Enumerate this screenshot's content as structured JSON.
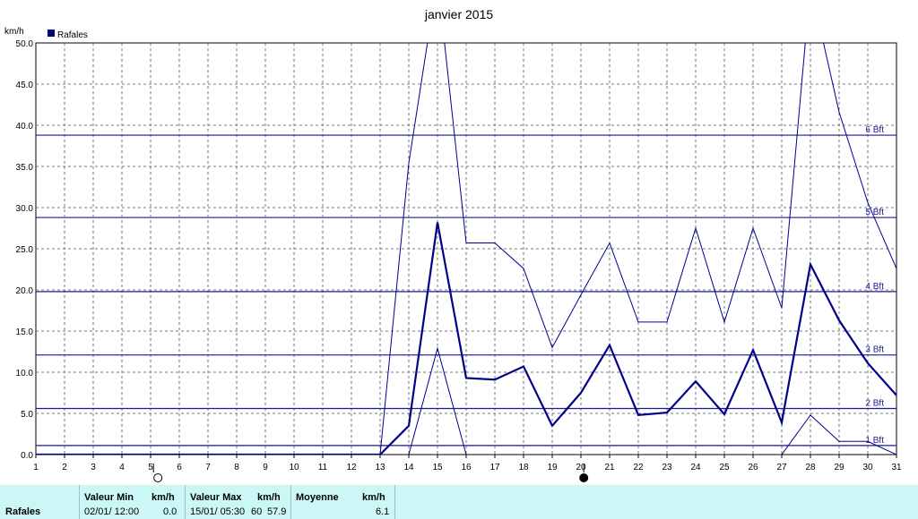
{
  "chart_data": {
    "type": "line",
    "title": "janvier 2015",
    "ylabel": "km/h",
    "legend": "Rafales",
    "legend_color": "#00007f",
    "line_color": "#00008b",
    "x": [
      1,
      2,
      3,
      4,
      5,
      6,
      7,
      8,
      9,
      10,
      11,
      12,
      13,
      14,
      15,
      16,
      17,
      18,
      19,
      20,
      21,
      22,
      23,
      24,
      25,
      26,
      27,
      28,
      29,
      30,
      31
    ],
    "xlim": [
      1,
      31
    ],
    "ylim": [
      0,
      50
    ],
    "yticks": [
      "0.0",
      "5.0",
      "10.0",
      "15.0",
      "20.0",
      "25.0",
      "30.0",
      "35.0",
      "40.0",
      "45.0",
      "50.0"
    ],
    "grid": true,
    "series": [
      {
        "role": "mean",
        "values": [
          0,
          0,
          0,
          0,
          0,
          0,
          0,
          0,
          0,
          0,
          0,
          0,
          0,
          3.5,
          28.2,
          9.3,
          9.1,
          10.7,
          3.5,
          7.5,
          13.3,
          4.8,
          5.1,
          8.9,
          4.9,
          12.7,
          3.9,
          23.1,
          16.3,
          11.1,
          7.2
        ]
      },
      {
        "role": "max",
        "values": [
          0,
          0,
          0,
          0,
          0,
          0,
          0,
          0,
          0,
          0,
          0,
          0,
          0,
          35.4,
          57.9,
          25.7,
          25.7,
          22.6,
          13.0,
          19.4,
          25.7,
          16.1,
          16.1,
          27.5,
          16.1,
          27.5,
          17.8,
          57.0,
          41.6,
          30.6,
          22.6
        ]
      },
      {
        "role": "min",
        "values": [
          null,
          null,
          null,
          null,
          null,
          null,
          null,
          null,
          null,
          null,
          null,
          null,
          null,
          0,
          12.9,
          0,
          null,
          null,
          null,
          null,
          null,
          null,
          null,
          null,
          null,
          null,
          0,
          4.8,
          1.6,
          1.6,
          0
        ]
      }
    ],
    "beaufort": [
      {
        "label": "1 Bft",
        "value": 1.1
      },
      {
        "label": "2 Bft",
        "value": 5.6
      },
      {
        "label": "3 Bft",
        "value": 12.1
      },
      {
        "label": "4 Bft",
        "value": 19.8
      },
      {
        "label": "5 Bft",
        "value": 28.8
      },
      {
        "label": "6 Bft",
        "value": 38.8
      }
    ],
    "moon_phases": [
      {
        "day": 5,
        "phase": "full-moon"
      },
      {
        "day": 20,
        "phase": "new-moon"
      }
    ]
  },
  "stats": {
    "row_label": "Rafales",
    "min_header": "Valeur Min",
    "max_header": "Valeur Max",
    "unit_header": "km/h",
    "mean_header": "Moyenne",
    "min_date": "02/01/  12:00",
    "min_value": "0.0",
    "max_date": "15/01/  05:30",
    "max_value": "57.9",
    "max_value_trunc": "60",
    "mean_value": "6.1"
  }
}
